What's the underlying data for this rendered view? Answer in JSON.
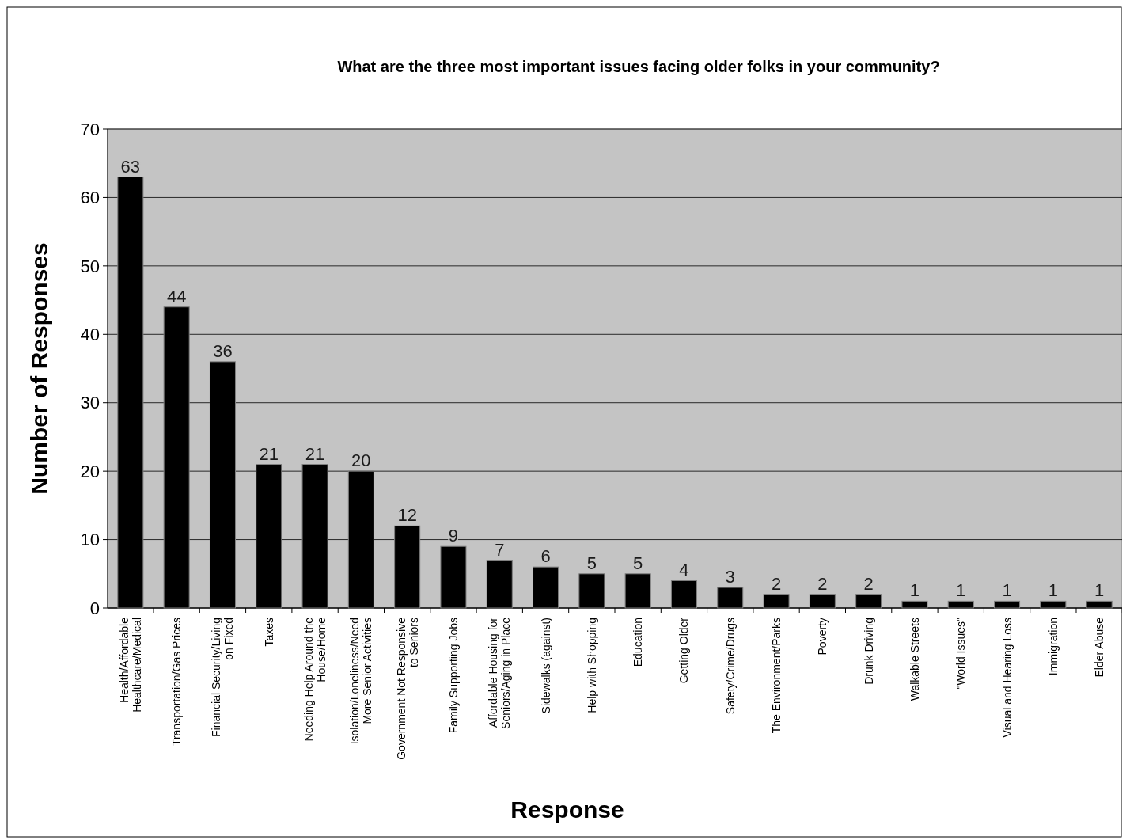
{
  "chart_data": {
    "type": "bar",
    "title": "What are the three most important issues facing older folks in your community?",
    "xlabel": "Response",
    "ylabel": "Number of Responses",
    "categories": [
      "Health/Affordable Healthcare/Medical",
      "Transportation/Gas Prices",
      "Financial Security/Living on Fixed",
      "Taxes",
      "Needing Help Around the House/Home",
      "Isolation/Loneliness/Need More Senior Activities",
      "Government Not Responsive to Seniors",
      "Family Supporting Jobs",
      "Affordable Housing for Seniors/Aging in Place",
      "Sidewalks (against)",
      "Help with Shopping",
      "Education",
      "Getting Older",
      "Safety/Crime/Drugs",
      "The Environment/Parks",
      "Poverty",
      "Drunk Driving",
      "Walkable Streets",
      "\"World Issues\"",
      "Visual and Hearing Loss",
      "Immigration",
      "Elder Abuse"
    ],
    "values": [
      63,
      44,
      36,
      21,
      21,
      20,
      12,
      9,
      7,
      6,
      5,
      5,
      4,
      3,
      2,
      2,
      2,
      1,
      1,
      1,
      1,
      1
    ],
    "color": "#000000",
    "ylim": [
      0,
      70
    ],
    "yticks": [
      0,
      10,
      20,
      30,
      40,
      50,
      60,
      70
    ],
    "grid": "y",
    "data_labels": true
  }
}
